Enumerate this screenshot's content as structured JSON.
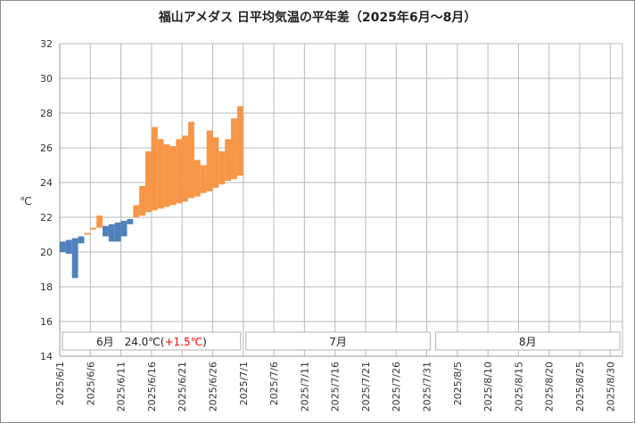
{
  "chart_data": {
    "type": "bar",
    "title": "福山アメダス 日平均気温の平年差（2025年6月～8月）",
    "ylabel": "℃",
    "ylim": [
      14,
      32
    ],
    "yticks": [
      14,
      16,
      18,
      20,
      22,
      24,
      26,
      28,
      30,
      32
    ],
    "grid": true,
    "xticks": [
      "2025/6/1",
      "2025/6/6",
      "2025/6/11",
      "2025/6/16",
      "2025/6/21",
      "2025/6/26",
      "2025/7/1",
      "2025/7/6",
      "2025/7/11",
      "2025/7/16",
      "2025/7/21",
      "2025/7/26",
      "2025/7/31",
      "2025/8/5",
      "2025/8/10",
      "2025/8/15",
      "2025/8/20",
      "2025/8/25",
      "2025/8/30"
    ],
    "series_desc": "Each day: a bar spanning from the normal (平年) value to the observed daily mean. Orange = above normal, blue = below normal.",
    "days": [
      {
        "date": "2025/6/1",
        "normal": 20.6,
        "actual": 20.0
      },
      {
        "date": "2025/6/2",
        "normal": 20.7,
        "actual": 19.9
      },
      {
        "date": "2025/6/3",
        "normal": 20.8,
        "actual": 18.5
      },
      {
        "date": "2025/6/4",
        "normal": 20.9,
        "actual": 20.5
      },
      {
        "date": "2025/6/5",
        "normal": 21.0,
        "actual": 21.1
      },
      {
        "date": "2025/6/6",
        "normal": 21.3,
        "actual": 21.4
      },
      {
        "date": "2025/6/7",
        "normal": 21.4,
        "actual": 22.1
      },
      {
        "date": "2025/6/8",
        "normal": 21.5,
        "actual": 20.9
      },
      {
        "date": "2025/6/9",
        "normal": 21.6,
        "actual": 20.6
      },
      {
        "date": "2025/6/10",
        "normal": 21.7,
        "actual": 20.6
      },
      {
        "date": "2025/6/11",
        "normal": 21.8,
        "actual": 20.9
      },
      {
        "date": "2025/6/12",
        "normal": 21.9,
        "actual": 21.6
      },
      {
        "date": "2025/6/13",
        "normal": 22.0,
        "actual": 22.7
      },
      {
        "date": "2025/6/14",
        "normal": 22.1,
        "actual": 23.8
      },
      {
        "date": "2025/6/15",
        "normal": 22.3,
        "actual": 25.8
      },
      {
        "date": "2025/6/16",
        "normal": 22.4,
        "actual": 27.2
      },
      {
        "date": "2025/6/17",
        "normal": 22.5,
        "actual": 26.5
      },
      {
        "date": "2025/6/18",
        "normal": 22.6,
        "actual": 26.2
      },
      {
        "date": "2025/6/19",
        "normal": 22.7,
        "actual": 26.1
      },
      {
        "date": "2025/6/20",
        "normal": 22.8,
        "actual": 26.5
      },
      {
        "date": "2025/6/21",
        "normal": 22.9,
        "actual": 26.7
      },
      {
        "date": "2025/6/22",
        "normal": 23.1,
        "actual": 27.5
      },
      {
        "date": "2025/6/23",
        "normal": 23.2,
        "actual": 25.3
      },
      {
        "date": "2025/6/24",
        "normal": 23.4,
        "actual": 25.0
      },
      {
        "date": "2025/6/25",
        "normal": 23.5,
        "actual": 27.0
      },
      {
        "date": "2025/6/26",
        "normal": 23.7,
        "actual": 26.6
      },
      {
        "date": "2025/6/27",
        "normal": 23.9,
        "actual": 25.8
      },
      {
        "date": "2025/6/28",
        "normal": 24.1,
        "actual": 26.5
      },
      {
        "date": "2025/6/29",
        "normal": 24.2,
        "actual": 27.7
      },
      {
        "date": "2025/6/30",
        "normal": 24.4,
        "actual": 28.4
      }
    ],
    "colors": {
      "above": "#f79646",
      "below": "#4f81bd",
      "grid": "#b8b8b8",
      "axis": "#999999"
    },
    "months": [
      {
        "month": "6月",
        "summary": "24.0℃",
        "diff": "+1.5℃",
        "diff_color": "#ff0000"
      },
      {
        "month": "7月",
        "summary": "",
        "diff": "",
        "diff_color": "#ff0000"
      },
      {
        "month": "8月",
        "summary": "",
        "diff": "",
        "diff_color": "#ff0000"
      }
    ]
  }
}
